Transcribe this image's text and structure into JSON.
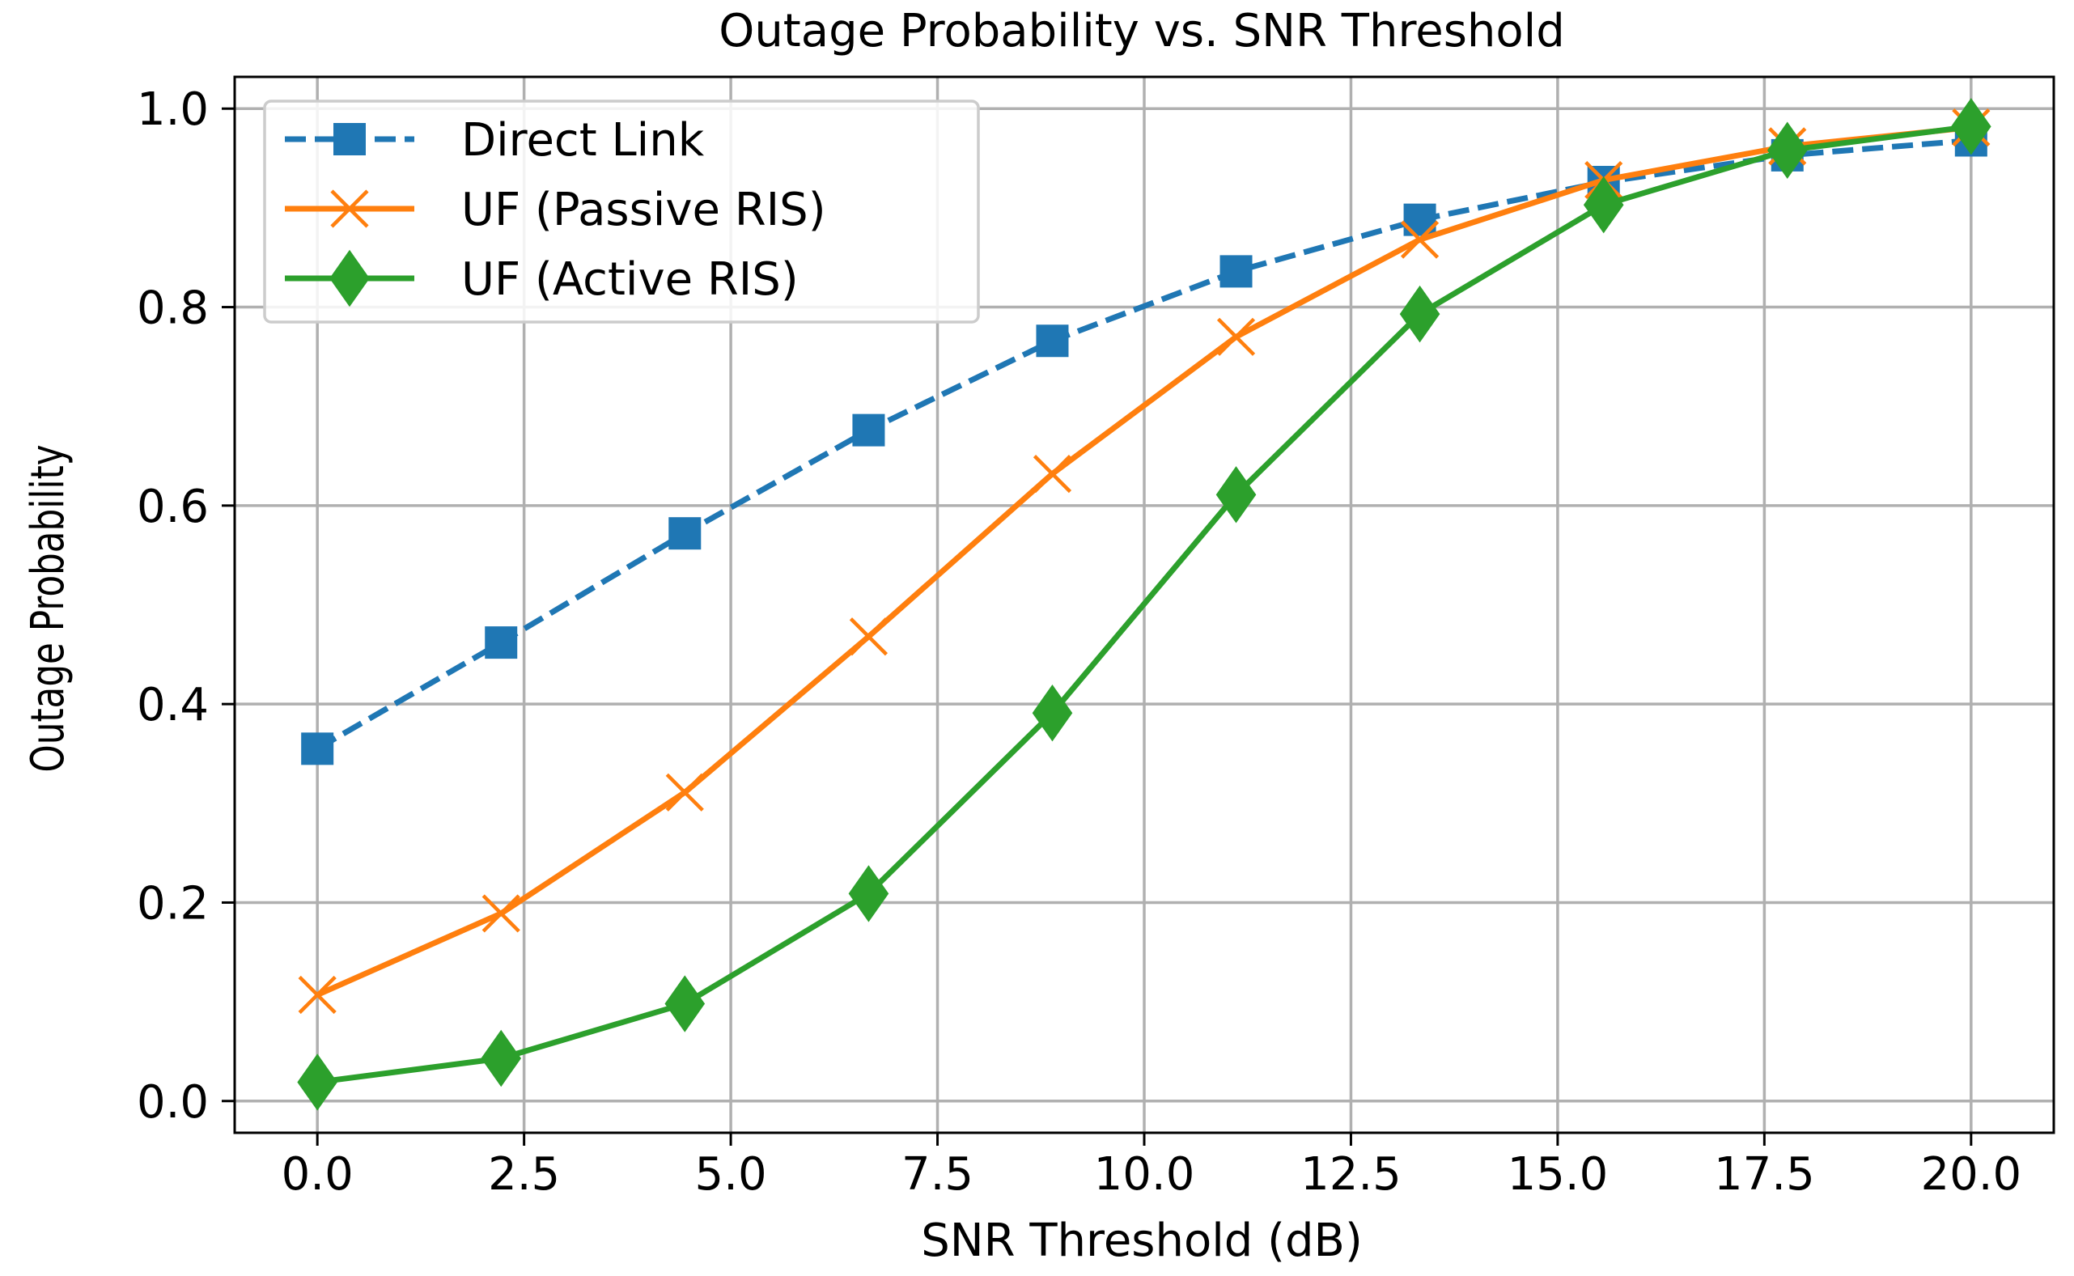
{
  "chart_data": {
    "type": "line",
    "title": "Outage Probability vs. SNR Threshold",
    "xlabel": "SNR Threshold (dB)",
    "ylabel": "Outage Probability",
    "xlim": [
      -1.0,
      21.0
    ],
    "ylim": [
      -0.032,
      1.032
    ],
    "grid": true,
    "legend_position": "upper-left",
    "x_ticks": [
      0.0,
      2.5,
      5.0,
      7.5,
      10.0,
      12.5,
      15.0,
      17.5,
      20.0
    ],
    "x_tick_labels": [
      "0.0",
      "2.5",
      "5.0",
      "7.5",
      "10.0",
      "12.5",
      "15.0",
      "17.5",
      "20.0"
    ],
    "y_ticks": [
      0.0,
      0.2,
      0.4,
      0.6,
      0.8,
      1.0
    ],
    "y_tick_labels": [
      "0.0",
      "0.2",
      "0.4",
      "0.6",
      "0.8",
      "1.0"
    ],
    "x": [
      0.0,
      2.222,
      4.444,
      6.667,
      8.889,
      11.111,
      13.333,
      15.556,
      17.778,
      20.0
    ],
    "series": [
      {
        "name": "Direct Link",
        "color": "#1f77b4",
        "line_style": "dashed",
        "marker": "square",
        "values": [
          0.355,
          0.462,
          0.572,
          0.676,
          0.766,
          0.836,
          0.888,
          0.926,
          0.953,
          0.968
        ]
      },
      {
        "name": "UF (Passive RIS)",
        "color": "#ff7f0e",
        "line_style": "solid",
        "marker": "x",
        "values": [
          0.107,
          0.189,
          0.311,
          0.468,
          0.632,
          0.77,
          0.868,
          0.928,
          0.962,
          0.981
        ]
      },
      {
        "name": "UF (Active RIS)",
        "color": "#2ca02c",
        "line_style": "solid",
        "marker": "diamond",
        "values": [
          0.019,
          0.043,
          0.098,
          0.209,
          0.391,
          0.611,
          0.793,
          0.903,
          0.958,
          0.982
        ]
      }
    ]
  }
}
